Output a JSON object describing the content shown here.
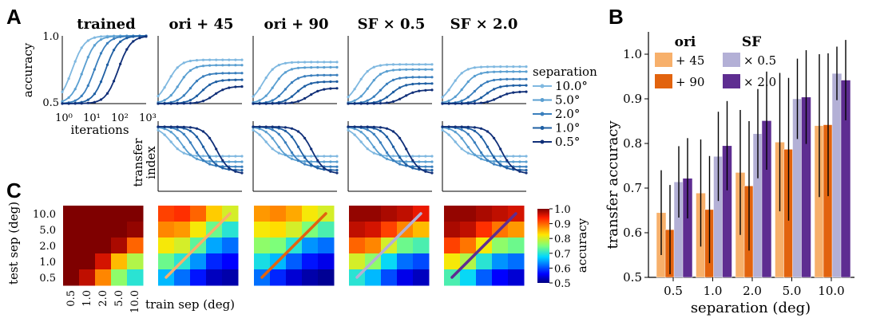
{
  "panels": {
    "a": "A",
    "b": "B",
    "c": "C"
  },
  "chart_data": [
    {
      "panel": "A",
      "type": "line",
      "column_titles": [
        "trained",
        "ori + 45",
        "ori + 90",
        "SF × 0.5",
        "SF × 2.0"
      ],
      "ylabel_top": "accuracy",
      "ylabel_bottom": "transfer\nindex",
      "xlabel": "iterations",
      "xscale": "log",
      "x_ticks": [
        "10⁰",
        "10¹",
        "10²",
        "10³"
      ],
      "y_ticks_top": [
        "0.5",
        "1.0"
      ],
      "legend_title": "separation",
      "series": [
        {
          "name": "10.0°",
          "color": "#7fb8e0",
          "midpoint_log10": 0.35,
          "transfer_plateau": 0.84,
          "ti_end": 0.5
        },
        {
          "name": "5.0°",
          "color": "#5a9fd1",
          "midpoint_log10": 0.75,
          "transfer_plateau": 0.8,
          "ti_end": 0.42
        },
        {
          "name": "2.0°",
          "color": "#3a7fbd",
          "midpoint_log10": 1.15,
          "transfer_plateau": 0.74,
          "ti_end": 0.35
        },
        {
          "name": "1.0°",
          "color": "#1f5fa3",
          "midpoint_log10": 1.55,
          "transfer_plateau": 0.69,
          "ti_end": 0.3
        },
        {
          "name": "0.5°",
          "color": "#102f78",
          "midpoint_log10": 2.0,
          "transfer_plateau": 0.64,
          "ti_end": 0.25
        }
      ]
    },
    {
      "panel": "B",
      "type": "bar",
      "categories": [
        "0.5",
        "1.0",
        "2.0",
        "5.0",
        "10.0"
      ],
      "xlabel": "separation (deg)",
      "ylabel": "transfer accuracy",
      "ylim": [
        0.5,
        1.05
      ],
      "y_ticks": [
        "0.5",
        "0.6",
        "0.7",
        "0.8",
        "0.9",
        "1.0"
      ],
      "legend_headers": [
        "ori",
        "SF"
      ],
      "legend_placement": "top-left",
      "series": [
        {
          "name": "+ 45",
          "color": "#f7b06b",
          "values": [
            0.645,
            0.689,
            0.735,
            0.803,
            0.84
          ],
          "err": [
            0.095,
            0.12,
            0.14,
            0.155,
            0.16
          ]
        },
        {
          "name": "+ 90",
          "color": "#e2630e",
          "values": [
            0.607,
            0.652,
            0.705,
            0.787,
            0.842
          ],
          "err": [
            0.1,
            0.12,
            0.145,
            0.16,
            0.16
          ]
        },
        {
          "name": "× 0.5",
          "color": "#b3b0d6",
          "values": [
            0.714,
            0.771,
            0.822,
            0.9,
            0.957
          ],
          "err": [
            0.08,
            0.1,
            0.1,
            0.09,
            0.06
          ]
        },
        {
          "name": "× 2.0",
          "color": "#5e2d91",
          "values": [
            0.722,
            0.795,
            0.851,
            0.904,
            0.942
          ],
          "err": [
            0.09,
            0.1,
            0.11,
            0.105,
            0.09
          ]
        }
      ]
    },
    {
      "panel": "C",
      "type": "heatmap",
      "ylabel": "test sep (deg)",
      "xlabel": "train sep (deg)",
      "row_labels": [
        "10.0",
        "5.0",
        "2.0",
        "1.0",
        "0.5"
      ],
      "col_labels": [
        "0.5",
        "1.0",
        "2.0",
        "5.0",
        "10.0"
      ],
      "colorbar_label": "accuracy",
      "colorbar_ticks": [
        "1.0",
        "0.9",
        "0.8",
        "0.7",
        "0.6",
        "0.5"
      ],
      "line_colors": [
        "#f7b06b",
        "#e2630e",
        "#b3b0d6",
        "#5e2d91"
      ],
      "matrices": [
        [
          [
            1.0,
            1.0,
            1.0,
            1.0,
            1.0
          ],
          [
            1.0,
            1.0,
            1.0,
            1.0,
            0.99
          ],
          [
            1.0,
            1.0,
            1.0,
            0.98,
            0.9
          ],
          [
            1.0,
            1.0,
            0.96,
            0.85,
            0.78
          ],
          [
            1.0,
            0.97,
            0.88,
            0.76,
            0.7
          ]
        ],
        [
          [
            0.92,
            0.93,
            0.9,
            0.84,
            0.8
          ],
          [
            0.88,
            0.87,
            0.82,
            0.74,
            0.7
          ],
          [
            0.82,
            0.8,
            0.73,
            0.65,
            0.62
          ],
          [
            0.74,
            0.7,
            0.64,
            0.58,
            0.56
          ],
          [
            0.66,
            0.62,
            0.57,
            0.53,
            0.52
          ]
        ],
        [
          [
            0.87,
            0.88,
            0.86,
            0.82,
            0.8
          ],
          [
            0.82,
            0.83,
            0.8,
            0.75,
            0.72
          ],
          [
            0.76,
            0.75,
            0.7,
            0.64,
            0.62
          ],
          [
            0.69,
            0.66,
            0.61,
            0.57,
            0.55
          ],
          [
            0.62,
            0.58,
            0.54,
            0.52,
            0.51
          ]
        ],
        [
          [
            0.99,
            0.99,
            0.98,
            0.97,
            0.95
          ],
          [
            0.97,
            0.96,
            0.92,
            0.88,
            0.85
          ],
          [
            0.9,
            0.88,
            0.8,
            0.74,
            0.72
          ],
          [
            0.8,
            0.76,
            0.68,
            0.62,
            0.6
          ],
          [
            0.7,
            0.66,
            0.6,
            0.55,
            0.53
          ]
        ],
        [
          [
            0.99,
            0.99,
            0.98,
            0.97,
            0.96
          ],
          [
            0.98,
            0.97,
            0.93,
            0.89,
            0.87
          ],
          [
            0.92,
            0.89,
            0.82,
            0.76,
            0.74
          ],
          [
            0.82,
            0.78,
            0.7,
            0.64,
            0.62
          ],
          [
            0.72,
            0.68,
            0.61,
            0.56,
            0.54
          ]
        ]
      ]
    }
  ]
}
